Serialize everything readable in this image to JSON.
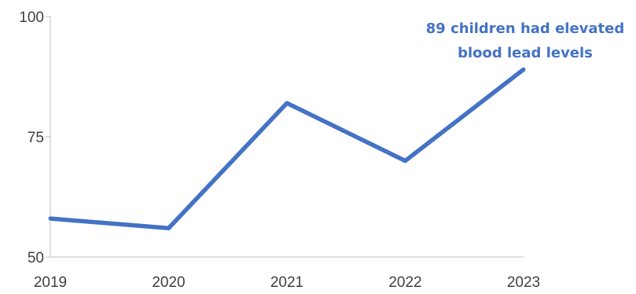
{
  "chart_data": {
    "type": "line",
    "title": "",
    "xlabel": "",
    "ylabel": "",
    "categories": [
      "2019",
      "2020",
      "2021",
      "2022",
      "2023"
    ],
    "series": [
      {
        "values": [
          58,
          56,
          82,
          70,
          89
        ],
        "color": "#4472C4"
      }
    ],
    "ylim": [
      50,
      100
    ],
    "yticks": [
      50,
      75,
      100
    ],
    "grid": false,
    "legend": "none",
    "annotation": {
      "lines": [
        "89 children had elevated",
        "blood lead levels"
      ],
      "color": "#4472C4",
      "anchor_category": "2023"
    },
    "axis_color": "#BFBFBF",
    "label_color": "#404040"
  }
}
